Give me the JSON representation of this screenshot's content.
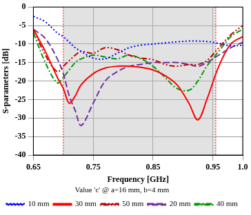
{
  "chart_data": {
    "type": "line",
    "x_label": "Frequency [GHz]",
    "y_label": "S-parameters [dB]",
    "legend_title": "Value 'c' @ a=16 mm, b=4 mm",
    "x": [
      0.65,
      0.67,
      0.69,
      0.7,
      0.71,
      0.72,
      0.73,
      0.75,
      0.77,
      0.79,
      0.81,
      0.83,
      0.85,
      0.87,
      0.89,
      0.91,
      0.925,
      0.94,
      0.96,
      0.98,
      1.0
    ],
    "series": [
      {
        "name": "10 mm",
        "color": "#0000ff",
        "line_style": "dotted",
        "values": [
          -2.5,
          -4,
          -7,
          -8,
          -9.5,
          -11,
          -12,
          -13.8,
          -14,
          -12.5,
          -11,
          -10.3,
          -10,
          -9.7,
          -9.4,
          -9.2,
          -9.2,
          -9.3,
          -9.8,
          -10.5,
          -10.3
        ]
      },
      {
        "name": "30 mm",
        "color": "#ff0000",
        "line_style": "solid",
        "values": [
          -6,
          -12,
          -19,
          -22,
          -26,
          -24,
          -21,
          -18,
          -16.5,
          -16,
          -16,
          -16.3,
          -17,
          -18.5,
          -21,
          -26,
          -30.5,
          -25,
          -16,
          -10,
          -8
        ]
      },
      {
        "name": "50 mm",
        "color": "#c00000",
        "line_style": "dashdotdot",
        "values": [
          -6,
          -13,
          -17.5,
          -16,
          -14.5,
          -13,
          -12,
          -12.5,
          -11,
          -11.5,
          -13,
          -13.8,
          -14.2,
          -15.5,
          -16,
          -15.5,
          -15.5,
          -14.5,
          -11,
          -7.5,
          -5
        ]
      },
      {
        "name": "20 mm",
        "color": "#7030a0",
        "line_style": "dashed",
        "values": [
          -6,
          -8.5,
          -14,
          -18,
          -24,
          -28,
          -32,
          -26,
          -20,
          -17.5,
          -16,
          -15.5,
          -15,
          -15,
          -15,
          -15.5,
          -16,
          -15,
          -13,
          -11,
          -9.5
        ]
      },
      {
        "name": "40 mm",
        "color": "#009900",
        "line_style": "dashdot",
        "values": [
          -7,
          -15,
          -20.5,
          -19,
          -17,
          -15,
          -14,
          -13,
          -13.5,
          -14,
          -13,
          -14,
          -16,
          -19,
          -22,
          -22.5,
          -20,
          -16,
          -12,
          -8,
          -6
        ]
      }
    ],
    "shaded_band": [
      0.7,
      0.955
    ],
    "xlim": [
      0.65,
      1.0
    ],
    "xticks": [
      0.65,
      0.75,
      0.85,
      0.95,
      {
        "value": 1,
        "label": "1.0"
      }
    ],
    "ylim": [
      -40,
      0
    ],
    "yticks": [
      -40,
      -35,
      -30,
      -25,
      -20,
      -15,
      -10,
      -5,
      0
    ],
    "grid": true,
    "legend": "bottom"
  }
}
